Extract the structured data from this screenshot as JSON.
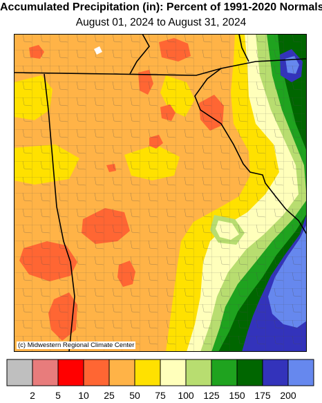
{
  "title": "Accumulated Precipitation (in): Percent of 1991-2020 Normals",
  "subtitle": "August 01, 2024 to August 31, 2024",
  "credit": "(c) Midwestern Regional Climate Center",
  "legend": {
    "colors": [
      "#bfbfbf",
      "#e87c7c",
      "#ff0000",
      "#ff6633",
      "#ffb347",
      "#ffe100",
      "#ffffbb",
      "#b8dd70",
      "#1fa31f",
      "#006600",
      "#3333bb",
      "#6688ee"
    ],
    "ticks": [
      "2",
      "5",
      "10",
      "25",
      "50",
      "75",
      "100",
      "125",
      "150",
      "175",
      "200"
    ]
  }
}
